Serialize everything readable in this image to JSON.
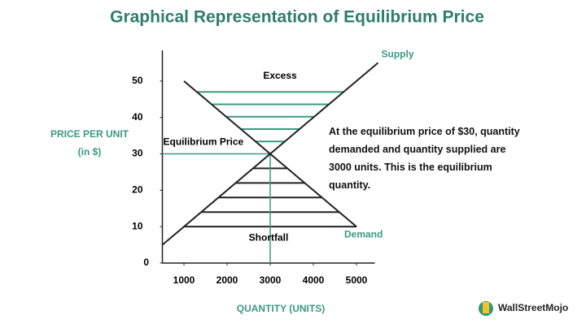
{
  "logo": "WallStreetMojo",
  "chart_data": {
    "type": "line",
    "title": "Graphical Representation of Equilibrium Price",
    "xlabel": "QUANTITY (UNITS)",
    "ylabel": "PRICE PER UNIT (in $)",
    "xlim": [
      500,
      5500
    ],
    "ylim": [
      0,
      60
    ],
    "xticks": [
      1000,
      2000,
      3000,
      4000,
      5000
    ],
    "yticks": [
      0,
      10,
      20,
      30,
      40,
      50
    ],
    "series": [
      {
        "name": "Supply",
        "color": "#222222",
        "x": [
          500,
          5500
        ],
        "values": [
          5,
          55
        ]
      },
      {
        "name": "Demand",
        "color": "#222222",
        "x": [
          1000,
          5000
        ],
        "values": [
          50,
          10
        ]
      }
    ],
    "series_label_color": "#3a9a80",
    "equilibrium": {
      "x": 3000,
      "y": 30,
      "label": "Equilibrium Price",
      "color": "#3a9a80"
    },
    "excess_label": "Excess",
    "shortfall_label": "Shortfall",
    "note": "At the equilibrium price of $30, quantity demanded and quantity supplied are 3000 units. This is the equilibrium quantity."
  }
}
